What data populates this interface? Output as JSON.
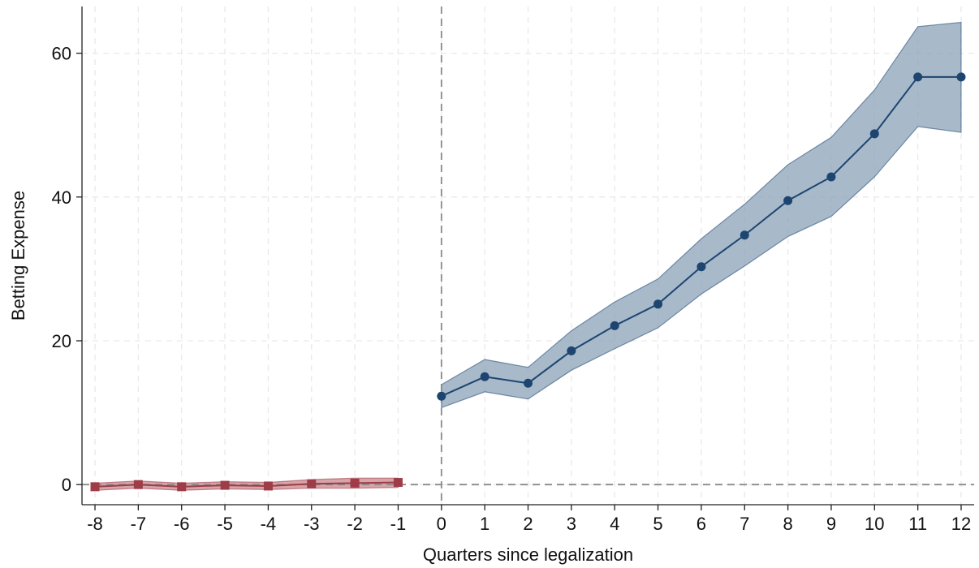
{
  "chart_data": {
    "type": "line",
    "title": "",
    "xlabel": "Quarters since legalization",
    "ylabel": "Betting Expense",
    "xlim": [
      -8.3,
      12.3
    ],
    "ylim": [
      -2.8,
      66.5
    ],
    "grid": true,
    "legend": "none",
    "x_ticks": [
      -8,
      -7,
      -6,
      -5,
      -4,
      -3,
      -2,
      -1,
      0,
      1,
      2,
      3,
      4,
      5,
      6,
      7,
      8,
      9,
      10,
      11,
      12
    ],
    "x_tick_labels": [
      "-8",
      "-7",
      "-6",
      "-5",
      "-4",
      "-3",
      "-2",
      "-1",
      "0",
      "1",
      "2",
      "3",
      "4",
      "5",
      "6",
      "7",
      "8",
      "9",
      "10",
      "11",
      "12"
    ],
    "y_ticks": [
      0,
      20,
      40,
      60
    ],
    "y_tick_labels": [
      "0",
      "20",
      "40",
      "60"
    ],
    "reference_lines": [
      {
        "orientation": "vertical",
        "value": 0,
        "style": "dashed"
      },
      {
        "orientation": "horizontal",
        "value": 0,
        "style": "dashed"
      }
    ],
    "series": [
      {
        "marker": "square",
        "color": "#9e3d47",
        "band_color": "#c9868d",
        "x": [
          -8,
          -7,
          -6,
          -5,
          -4,
          -3,
          -2,
          -1
        ],
        "values": [
          -0.3,
          0.0,
          -0.3,
          -0.1,
          -0.2,
          0.1,
          0.2,
          0.3
        ],
        "lower": [
          -0.8,
          -0.5,
          -0.8,
          -0.6,
          -0.7,
          -0.5,
          -0.5,
          -0.4
        ],
        "upper": [
          0.2,
          0.5,
          0.2,
          0.4,
          0.3,
          0.7,
          0.9,
          0.9
        ]
      },
      {
        "marker": "circle",
        "color": "#1d4570",
        "band_color": "#8ba2b8",
        "x": [
          0,
          1,
          2,
          3,
          4,
          5,
          6,
          7,
          8,
          9,
          10,
          11,
          12
        ],
        "values": [
          12.3,
          15.0,
          14.1,
          18.6,
          22.1,
          25.1,
          30.3,
          34.7,
          39.5,
          42.8,
          48.8,
          56.7,
          56.7
        ],
        "lower": [
          10.7,
          12.9,
          11.9,
          15.9,
          18.9,
          21.8,
          26.5,
          30.4,
          34.5,
          37.3,
          42.8,
          49.8,
          49.0
        ],
        "upper": [
          13.9,
          17.4,
          16.3,
          21.4,
          25.4,
          28.6,
          34.2,
          39.0,
          44.5,
          48.3,
          54.9,
          63.7,
          64.3
        ]
      }
    ]
  }
}
